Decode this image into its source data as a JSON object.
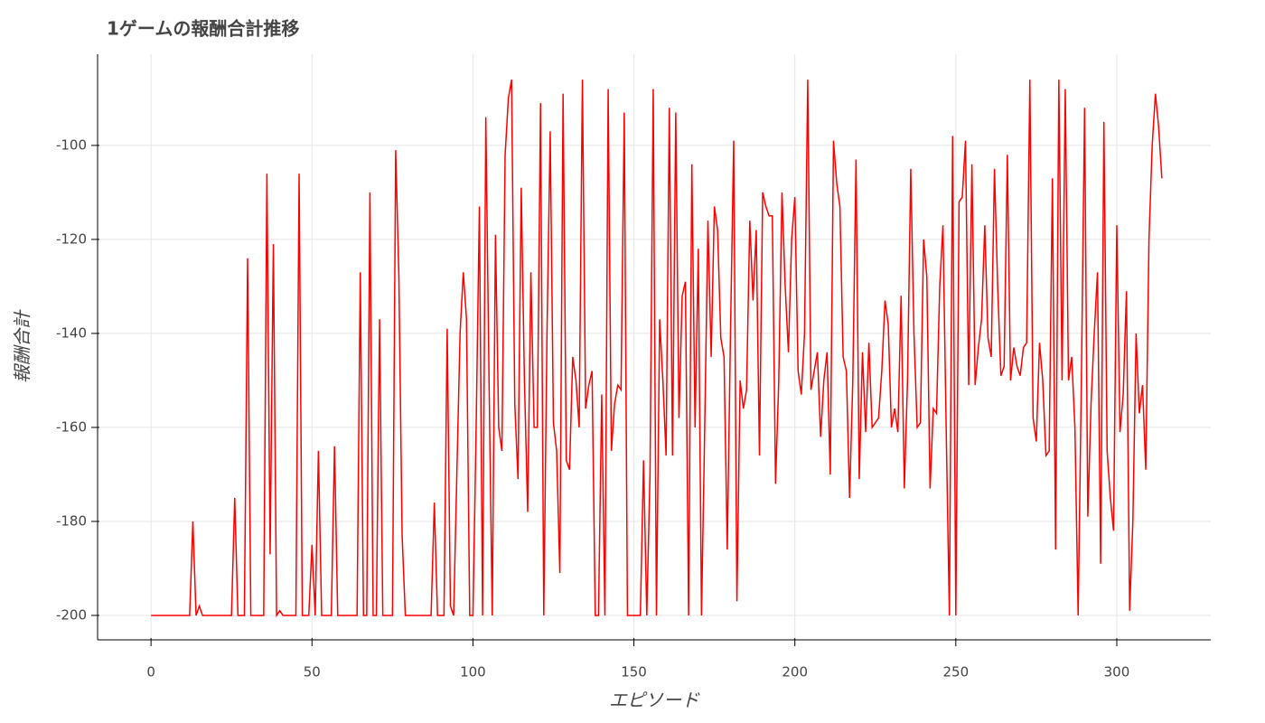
{
  "chart_data": {
    "type": "line",
    "title": "1ゲームの報酬合計推移",
    "x_label": "エピソード",
    "y_label": "報酬合計",
    "xlim": [
      -16.6,
      329.2
    ],
    "ylim": [
      -205.2,
      -80.6
    ],
    "xticks": [
      0,
      50,
      100,
      150,
      200,
      250,
      300
    ],
    "yticks": [
      -200,
      -180,
      -160,
      -140,
      -120,
      -100
    ],
    "grid": true,
    "series": [
      {
        "color": "#ff0000",
        "values": [
          -200,
          -200,
          -200,
          -200,
          -200,
          -200,
          -200,
          -200,
          -200,
          -200,
          -200,
          -200,
          -200,
          -180,
          -200,
          -198,
          -200,
          -200,
          -200,
          -200,
          -200,
          -200,
          -200,
          -200,
          -200,
          -200,
          -175,
          -200,
          -200,
          -200,
          -124,
          -200,
          -200,
          -200,
          -200,
          -200,
          -106,
          -187,
          -121,
          -200,
          -199,
          -200,
          -200,
          -200,
          -200,
          -200,
          -106,
          -200,
          -200,
          -200,
          -185,
          -200,
          -165,
          -200,
          -200,
          -200,
          -200,
          -164,
          -200,
          -200,
          -200,
          -200,
          -200,
          -200,
          -200,
          -127,
          -200,
          -200,
          -110,
          -200,
          -200,
          -137,
          -200,
          -200,
          -200,
          -200,
          -101,
          -128,
          -183,
          -200,
          -200,
          -200,
          -200,
          -200,
          -200,
          -200,
          -200,
          -200,
          -176,
          -200,
          -200,
          -200,
          -139,
          -198,
          -200,
          -170,
          -140,
          -127,
          -137,
          -200,
          -200,
          -160,
          -113,
          -200,
          -94,
          -150,
          -200,
          -119,
          -160,
          -165,
          -102,
          -90,
          -86,
          -155,
          -171,
          -109,
          -150,
          -178,
          -127,
          -160,
          -160,
          -91,
          -200,
          -140,
          -97,
          -159,
          -165,
          -191,
          -89,
          -167,
          -169,
          -145,
          -150,
          -160,
          -86,
          -156,
          -151,
          -148,
          -200,
          -200,
          -153,
          -200,
          -88,
          -165,
          -155,
          -151,
          -152,
          -93,
          -200,
          -200,
          -200,
          -200,
          -200,
          -167,
          -200,
          -170,
          -88,
          -200,
          -137,
          -150,
          -166,
          -92,
          -166,
          -93,
          -158,
          -132,
          -129,
          -200,
          -104,
          -160,
          -122,
          -200,
          -160,
          -116,
          -145,
          -113,
          -118,
          -141,
          -145,
          -186,
          -140,
          -99,
          -197,
          -150,
          -156,
          -152,
          -116,
          -133,
          -118,
          -166,
          -110,
          -113,
          -115,
          -115,
          -172,
          -150,
          -110,
          -130,
          -144,
          -120,
          -111,
          -148,
          -153,
          -140,
          -86,
          -152,
          -148,
          -144,
          -162,
          -150,
          -144,
          -170,
          -99,
          -108,
          -113,
          -145,
          -148,
          -175,
          -150,
          -103,
          -171,
          -144,
          -161,
          -142,
          -160,
          -159,
          -158,
          -148,
          -133,
          -138,
          -160,
          -156,
          -161,
          -132,
          -173,
          -150,
          -105,
          -140,
          -160,
          -159,
          -120,
          -128,
          -173,
          -156,
          -157,
          -130,
          -117,
          -160,
          -200,
          -98,
          -200,
          -112,
          -111,
          -99,
          -151,
          -104,
          -151,
          -143,
          -137,
          -117,
          -141,
          -145,
          -105,
          -130,
          -149,
          -147,
          -102,
          -150,
          -143,
          -147,
          -149,
          -143,
          -142,
          -86,
          -158,
          -163,
          -142,
          -150,
          -166,
          -165,
          -107,
          -186,
          -86,
          -150,
          -88,
          -150,
          -145,
          -160,
          -200,
          -150,
          -92,
          -179,
          -155,
          -140,
          -127,
          -189,
          -95,
          -165,
          -175,
          -182,
          -117,
          -161,
          -153,
          -131,
          -199,
          -180,
          -140,
          -157,
          -151,
          -169,
          -120,
          -100,
          -89,
          -96,
          -107
        ]
      }
    ]
  }
}
